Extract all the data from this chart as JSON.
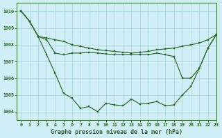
{
  "title": "Graphe pression niveau de la mer (hPa)",
  "background_color": "#d0eef5",
  "grid_color": "#b0d8e0",
  "line_color": "#2d6628",
  "xlim": [
    -0.5,
    23
  ],
  "ylim": [
    1003.5,
    1010.5
  ],
  "xticks": [
    0,
    1,
    2,
    3,
    4,
    5,
    6,
    7,
    8,
    9,
    10,
    11,
    12,
    13,
    14,
    15,
    16,
    17,
    18,
    19,
    20,
    21,
    22,
    23
  ],
  "yticks": [
    1004,
    1005,
    1006,
    1007,
    1008,
    1009,
    1010
  ],
  "series1_top": [
    1010.0,
    1009.4,
    1008.5,
    1008.4,
    1008.3,
    1008.2,
    1008.0,
    1007.9,
    1007.8,
    1007.7,
    1007.65,
    1007.6,
    1007.55,
    1007.5,
    1007.55,
    1007.6,
    1007.7,
    1007.75,
    1007.8,
    1007.9,
    1008.0,
    1008.1,
    1008.3,
    1008.6
  ],
  "series2_mid": [
    1010.0,
    1009.4,
    1008.5,
    1008.3,
    1007.5,
    1007.4,
    1007.5,
    1007.5,
    1007.55,
    1007.5,
    1007.45,
    1007.4,
    1007.4,
    1007.4,
    1007.4,
    1007.4,
    1007.5,
    1007.4,
    1007.3,
    1006.0,
    1006.0,
    1006.6,
    1007.8,
    1008.6
  ],
  "series3_bot": [
    1010.0,
    1009.4,
    1008.5,
    1007.4,
    1006.3,
    1005.1,
    1004.8,
    1004.2,
    1004.3,
    1004.0,
    1004.5,
    1004.4,
    1004.35,
    1004.75,
    1004.45,
    1004.5,
    1004.6,
    1004.35,
    1004.4,
    1005.0,
    1005.5,
    1006.6,
    1007.8,
    1008.6
  ]
}
